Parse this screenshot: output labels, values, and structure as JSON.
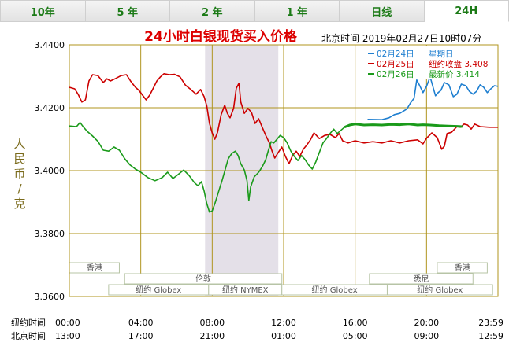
{
  "tabs": [
    {
      "label": "10年",
      "active": false
    },
    {
      "label": "5 年",
      "active": false
    },
    {
      "label": "2 年",
      "active": false
    },
    {
      "label": "1 年",
      "active": false
    },
    {
      "label": "日线",
      "active": false
    },
    {
      "label": "24H",
      "active": true
    }
  ],
  "chart_data": {
    "type": "line",
    "title": "24小时白银现货买入价格",
    "timestamp": "北京时间   2019年02月27日10时07分",
    "ylabel": "人民币/克",
    "ylim": [
      3.36,
      3.44
    ],
    "y_ticks": [
      "3.4400",
      "3.4200",
      "3.4000",
      "3.3800",
      "3.3600"
    ],
    "x_range": [
      0,
      24
    ],
    "x_tick_hours": [
      0,
      4,
      8,
      12,
      16,
      20,
      24
    ],
    "x_row1": {
      "label": "纽约时间",
      "ticks": [
        "00:00",
        "04:00",
        "08:00",
        "12:00",
        "16:00",
        "20:00",
        "23:59"
      ]
    },
    "x_row2": {
      "label": "北京时间",
      "ticks": [
        "13:00",
        "17:00",
        "21:00",
        "01:00",
        "05:00",
        "09:00",
        "12:59"
      ]
    },
    "grid": true,
    "highlight_band": [
      7.6,
      11.7
    ],
    "sessions": [
      {
        "label": "香港",
        "start": 0,
        "end": 2.8,
        "row": 0
      },
      {
        "label": "香港",
        "start": 20.6,
        "end": 23.4,
        "row": 0
      },
      {
        "label": "伦敦",
        "start": 3.1,
        "end": 11.9,
        "row": 1
      },
      {
        "label": "悉尼",
        "start": 16.8,
        "end": 22.6,
        "row": 1
      },
      {
        "label": "纽约 Globex",
        "start": 2.2,
        "end": 7.8,
        "row": 2
      },
      {
        "label": "纽约 NYMEX",
        "start": 7.8,
        "end": 11.9,
        "row": 2
      },
      {
        "label": "纽约 Globex",
        "start": 11.9,
        "end": 17.8,
        "row": 2
      },
      {
        "label": "纽约 Globex",
        "start": 17.8,
        "end": 23.7,
        "row": 2
      }
    ],
    "legend": [
      {
        "label": "02月24日",
        "extra": "星期日",
        "color": "#1f7fd0"
      },
      {
        "label": "02月25日",
        "extra": "纽约收盘 3.408",
        "color": "#cc0000"
      },
      {
        "label": "02月26日",
        "extra": "最新价 3.414",
        "color": "#1a9a1a"
      }
    ],
    "series": [
      {
        "name": "02月24日",
        "color": "#1f7fd0",
        "points": [
          [
            16.7,
            3.4163
          ],
          [
            17.5,
            3.4162
          ],
          [
            17.9,
            3.4168
          ],
          [
            18.2,
            3.4178
          ],
          [
            18.5,
            3.4182
          ],
          [
            18.9,
            3.4196
          ],
          [
            19.1,
            3.4215
          ],
          [
            19.3,
            3.423
          ],
          [
            19.45,
            3.4288
          ],
          [
            19.6,
            3.4272
          ],
          [
            19.8,
            3.4248
          ],
          [
            20.0,
            3.4268
          ],
          [
            20.2,
            3.4298
          ],
          [
            20.35,
            3.4268
          ],
          [
            20.5,
            3.4238
          ],
          [
            20.65,
            3.4248
          ],
          [
            20.8,
            3.4255
          ],
          [
            21.0,
            3.428
          ],
          [
            21.25,
            3.4273
          ],
          [
            21.5,
            3.4235
          ],
          [
            21.7,
            3.4243
          ],
          [
            21.95,
            3.4275
          ],
          [
            22.2,
            3.427
          ],
          [
            22.4,
            3.4252
          ],
          [
            22.6,
            3.4243
          ],
          [
            22.8,
            3.4252
          ],
          [
            23.0,
            3.4273
          ],
          [
            23.2,
            3.4265
          ],
          [
            23.4,
            3.4248
          ],
          [
            23.6,
            3.426
          ],
          [
            23.8,
            3.427
          ],
          [
            24.0,
            3.4268
          ]
        ]
      },
      {
        "name": "02月25日",
        "color": "#cc0000",
        "points": [
          [
            0,
            3.4265
          ],
          [
            0.3,
            3.426
          ],
          [
            0.5,
            3.4242
          ],
          [
            0.7,
            3.4218
          ],
          [
            0.9,
            3.4225
          ],
          [
            1.1,
            3.4285
          ],
          [
            1.3,
            3.4305
          ],
          [
            1.6,
            3.4302
          ],
          [
            1.9,
            3.428
          ],
          [
            2.1,
            3.4292
          ],
          [
            2.3,
            3.4285
          ],
          [
            2.6,
            3.4293
          ],
          [
            2.9,
            3.4302
          ],
          [
            3.2,
            3.4305
          ],
          [
            3.45,
            3.4283
          ],
          [
            3.7,
            3.4265
          ],
          [
            3.9,
            3.4255
          ],
          [
            4.1,
            3.424
          ],
          [
            4.3,
            3.4225
          ],
          [
            4.5,
            3.424
          ],
          [
            4.7,
            3.4262
          ],
          [
            4.9,
            3.4285
          ],
          [
            5.1,
            3.4298
          ],
          [
            5.3,
            3.4308
          ],
          [
            5.6,
            3.4305
          ],
          [
            5.9,
            3.4306
          ],
          [
            6.2,
            3.4298
          ],
          [
            6.5,
            3.4272
          ],
          [
            6.8,
            3.4258
          ],
          [
            7.1,
            3.4243
          ],
          [
            7.35,
            3.4258
          ],
          [
            7.55,
            3.4235
          ],
          [
            7.7,
            3.4205
          ],
          [
            7.85,
            3.415
          ],
          [
            8.0,
            3.412
          ],
          [
            8.15,
            3.41
          ],
          [
            8.3,
            3.4122
          ],
          [
            8.5,
            3.4178
          ],
          [
            8.7,
            3.4208
          ],
          [
            8.85,
            3.4182
          ],
          [
            9.0,
            3.4168
          ],
          [
            9.2,
            3.4198
          ],
          [
            9.35,
            3.4262
          ],
          [
            9.5,
            3.4278
          ],
          [
            9.6,
            3.4218
          ],
          [
            9.8,
            3.4182
          ],
          [
            10.0,
            3.4198
          ],
          [
            10.2,
            3.4185
          ],
          [
            10.4,
            3.415
          ],
          [
            10.6,
            3.4165
          ],
          [
            10.8,
            3.4138
          ],
          [
            11.0,
            3.4112
          ],
          [
            11.2,
            3.4088
          ],
          [
            11.35,
            3.4062
          ],
          [
            11.5,
            3.404
          ],
          [
            11.7,
            3.4058
          ],
          [
            11.9,
            3.4075
          ],
          [
            12.1,
            3.4045
          ],
          [
            12.3,
            3.4022
          ],
          [
            12.5,
            3.4048
          ],
          [
            12.7,
            3.4062
          ],
          [
            12.9,
            3.4045
          ],
          [
            13.1,
            3.4068
          ],
          [
            13.3,
            3.4082
          ],
          [
            13.5,
            3.4098
          ],
          [
            13.7,
            3.412
          ],
          [
            14.0,
            3.4102
          ],
          [
            14.3,
            3.4112
          ],
          [
            14.6,
            3.4115
          ],
          [
            14.9,
            3.4105
          ],
          [
            15.1,
            3.4118
          ],
          [
            15.3,
            3.4095
          ],
          [
            15.6,
            3.4088
          ],
          [
            16.0,
            3.4095
          ],
          [
            16.5,
            3.4088
          ],
          [
            17.0,
            3.4092
          ],
          [
            17.5,
            3.4088
          ],
          [
            18.0,
            3.4095
          ],
          [
            18.5,
            3.4088
          ],
          [
            19.0,
            3.4095
          ],
          [
            19.5,
            3.4098
          ],
          [
            19.8,
            3.4085
          ],
          [
            20.0,
            3.4103
          ],
          [
            20.3,
            3.412
          ],
          [
            20.6,
            3.4105
          ],
          [
            20.85,
            3.4068
          ],
          [
            21.0,
            3.4078
          ],
          [
            21.15,
            3.4118
          ],
          [
            21.4,
            3.4122
          ],
          [
            21.7,
            3.414
          ],
          [
            21.9,
            3.4138
          ],
          [
            22.1,
            3.4148
          ],
          [
            22.3,
            3.4145
          ],
          [
            22.5,
            3.4132
          ],
          [
            22.7,
            3.4148
          ],
          [
            23.0,
            3.414
          ],
          [
            23.5,
            3.4138
          ],
          [
            24.0,
            3.4138
          ]
        ]
      },
      {
        "name": "02月26日",
        "color": "#1a9a1a",
        "points": [
          [
            0,
            3.4142
          ],
          [
            0.4,
            3.414
          ],
          [
            0.6,
            3.4153
          ],
          [
            0.8,
            3.4138
          ],
          [
            1.0,
            3.4125
          ],
          [
            1.3,
            3.411
          ],
          [
            1.6,
            3.4093
          ],
          [
            1.9,
            3.4065
          ],
          [
            2.2,
            3.4062
          ],
          [
            2.5,
            3.4075
          ],
          [
            2.8,
            3.4065
          ],
          [
            3.1,
            3.4038
          ],
          [
            3.4,
            3.4018
          ],
          [
            3.7,
            3.4005
          ],
          [
            4.0,
            3.3995
          ],
          [
            4.4,
            3.3978
          ],
          [
            4.8,
            3.3968
          ],
          [
            5.2,
            3.3978
          ],
          [
            5.5,
            3.3995
          ],
          [
            5.8,
            3.3975
          ],
          [
            6.1,
            3.3988
          ],
          [
            6.4,
            3.4002
          ],
          [
            6.7,
            3.3985
          ],
          [
            7.0,
            3.3962
          ],
          [
            7.2,
            3.3952
          ],
          [
            7.4,
            3.3965
          ],
          [
            7.55,
            3.3935
          ],
          [
            7.7,
            3.3895
          ],
          [
            7.85,
            3.3868
          ],
          [
            8.0,
            3.3872
          ],
          [
            8.15,
            3.3895
          ],
          [
            8.35,
            3.3932
          ],
          [
            8.55,
            3.3968
          ],
          [
            8.7,
            3.3998
          ],
          [
            8.9,
            3.4038
          ],
          [
            9.1,
            3.4055
          ],
          [
            9.3,
            3.4062
          ],
          [
            9.45,
            3.4048
          ],
          [
            9.6,
            3.4022
          ],
          [
            9.8,
            3.4002
          ],
          [
            9.95,
            3.3968
          ],
          [
            10.05,
            3.3905
          ],
          [
            10.15,
            3.3948
          ],
          [
            10.35,
            3.398
          ],
          [
            10.6,
            3.3995
          ],
          [
            10.8,
            3.4012
          ],
          [
            11.0,
            3.4035
          ],
          [
            11.15,
            3.4065
          ],
          [
            11.3,
            3.4092
          ],
          [
            11.45,
            3.4088
          ],
          [
            11.6,
            3.4098
          ],
          [
            11.8,
            3.4112
          ],
          [
            12.0,
            3.4105
          ],
          [
            12.2,
            3.4088
          ],
          [
            12.4,
            3.4062
          ],
          [
            12.6,
            3.4045
          ],
          [
            12.8,
            3.4032
          ],
          [
            13.0,
            3.4048
          ],
          [
            13.2,
            3.4035
          ],
          [
            13.4,
            3.4018
          ],
          [
            13.6,
            3.4005
          ],
          [
            13.8,
            3.4028
          ],
          [
            14.0,
            3.4058
          ],
          [
            14.2,
            3.4088
          ],
          [
            14.4,
            3.4102
          ],
          [
            14.6,
            3.4118
          ],
          [
            14.8,
            3.4132
          ],
          [
            15.0,
            3.4118
          ],
          [
            15.2,
            3.4128
          ],
          [
            15.4,
            3.4138
          ],
          [
            15.7,
            3.4145
          ],
          [
            16.0,
            3.4148
          ],
          [
            16.5,
            3.4145
          ],
          [
            17.0,
            3.4146
          ],
          [
            17.5,
            3.4145
          ],
          [
            18.0,
            3.4147
          ],
          [
            18.5,
            3.4146
          ],
          [
            19.0,
            3.4148
          ],
          [
            19.5,
            3.4145
          ],
          [
            19.8,
            3.4146
          ],
          [
            20.2,
            3.4145
          ],
          [
            20.7,
            3.4143
          ],
          [
            21.2,
            3.4142
          ],
          [
            21.7,
            3.4141
          ],
          [
            22.0,
            3.414
          ]
        ]
      }
    ]
  }
}
